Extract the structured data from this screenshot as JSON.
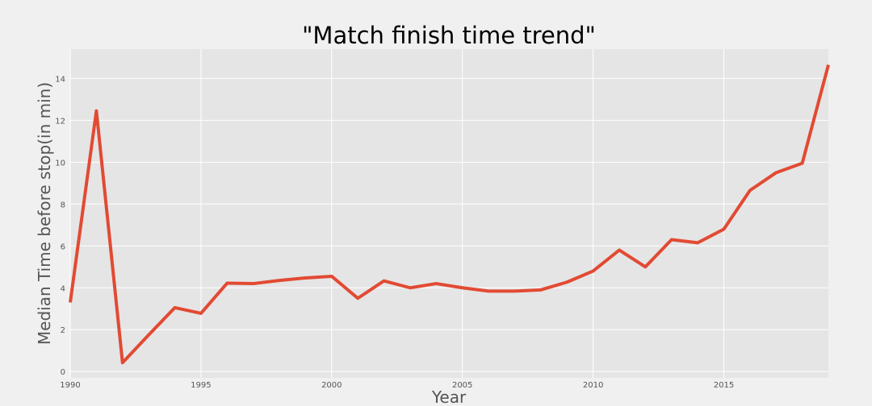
{
  "chart_data": {
    "type": "line",
    "title": "\"Match finish time trend\"",
    "xlabel": "Year",
    "ylabel": "Median Time before stop(in min)",
    "xlim": [
      1990,
      2019
    ],
    "ylim": [
      -0.3,
      15.4
    ],
    "x_ticks": [
      1990,
      1995,
      2000,
      2005,
      2010,
      2015
    ],
    "y_ticks": [
      0,
      2,
      4,
      6,
      8,
      10,
      12,
      14
    ],
    "grid": true,
    "legend": "none",
    "colors": {
      "line": "#e24a33",
      "plot_background": "#e5e5e5",
      "figure_background": "#f0f0f0",
      "grid": "#ffffff"
    },
    "series": [
      {
        "x": [
          1990,
          1991,
          1992,
          1993,
          1994,
          1995,
          1996,
          1997,
          1998,
          1999,
          2000,
          2001,
          2002,
          2003,
          2004,
          2005,
          2006,
          2007,
          2008,
          2009,
          2010,
          2011,
          2012,
          2013,
          2014,
          2015,
          2016,
          2017,
          2018,
          2019
        ],
        "values": [
          3.3,
          12.45,
          0.42,
          1.75,
          3.05,
          2.78,
          4.22,
          4.2,
          4.35,
          4.47,
          4.55,
          3.5,
          4.33,
          4.0,
          4.2,
          4.0,
          3.84,
          3.84,
          3.9,
          4.27,
          4.8,
          5.8,
          5.0,
          6.3,
          6.15,
          6.8,
          8.65,
          9.5,
          9.95,
          14.65
        ]
      }
    ]
  }
}
